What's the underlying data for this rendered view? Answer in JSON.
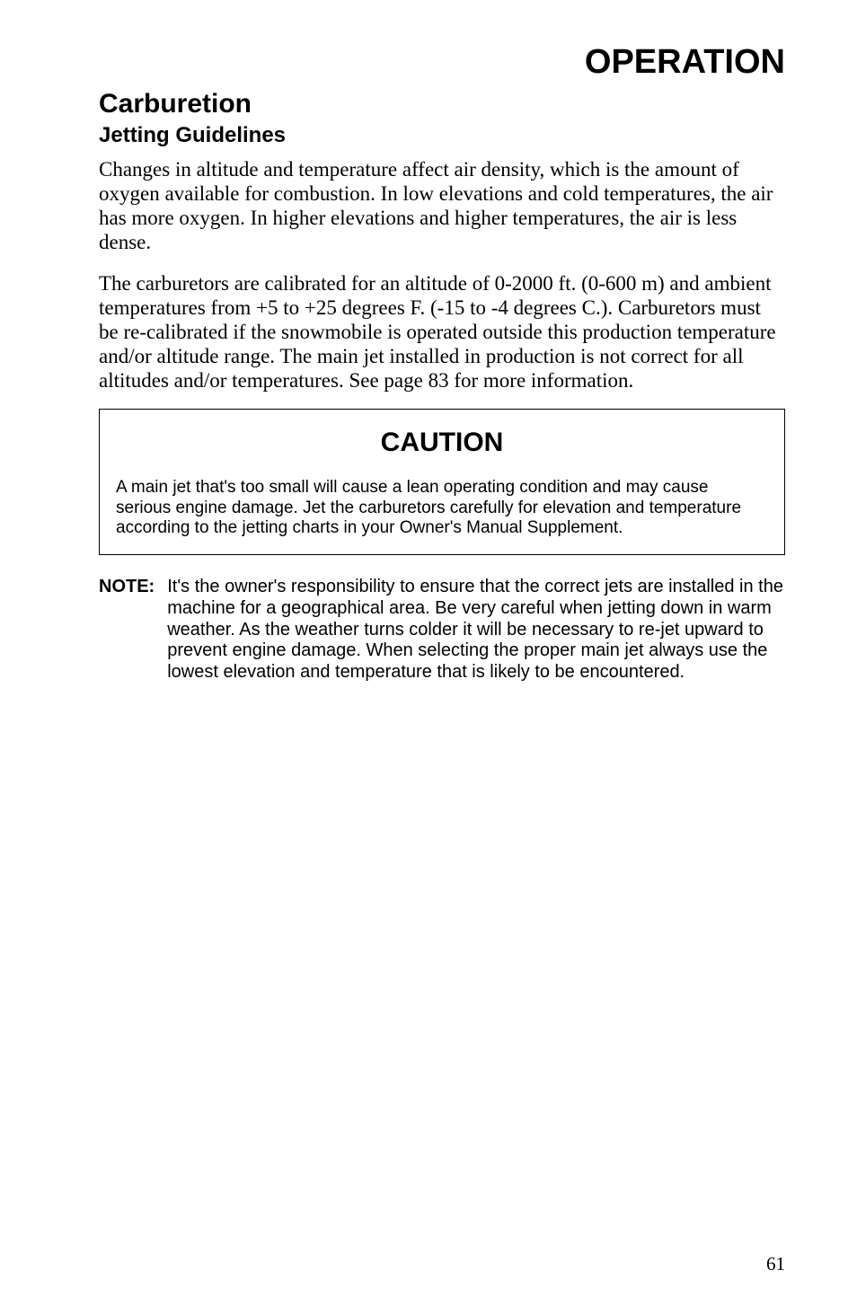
{
  "page": {
    "main_heading": "OPERATION",
    "section_heading": "Carburetion",
    "subsection_heading": "Jetting Guidelines",
    "para1": "Changes in altitude and temperature affect air density, which is the amount of oxygen available for combustion. In low elevations and cold temperatures, the air has more oxygen. In higher elevations and higher temperatures, the air is less dense.",
    "para2": "The carburetors are calibrated for an altitude of 0-2000 ft. (0-600 m) and ambient temperatures from +5 to +25 degrees F. (-15 to -4 degrees C.). Carburetors must be re-calibrated if the snowmobile is operated outside this production temperature and/or altitude range. The main jet installed in production is not correct for all altitudes and/or temperatures. See page 83 for more information.",
    "caution": {
      "title": "CAUTION",
      "text": "A main jet that's too small will cause a lean operating condition and may cause serious engine damage. Jet the carburetors carefully for elevation and temperature according to the jetting charts in your Owner's Manual Supplement."
    },
    "note": {
      "label": "NOTE:",
      "body": "It's the owner's responsibility to ensure that the correct jets are installed in the machine for a geographical area. Be very careful when jetting down in warm weather. As the weather turns colder it will be necessary to re-jet upward to prevent engine damage. When selecting the proper main jet always use the lowest elevation and temperature that is likely to be encountered."
    },
    "page_number": "61"
  }
}
